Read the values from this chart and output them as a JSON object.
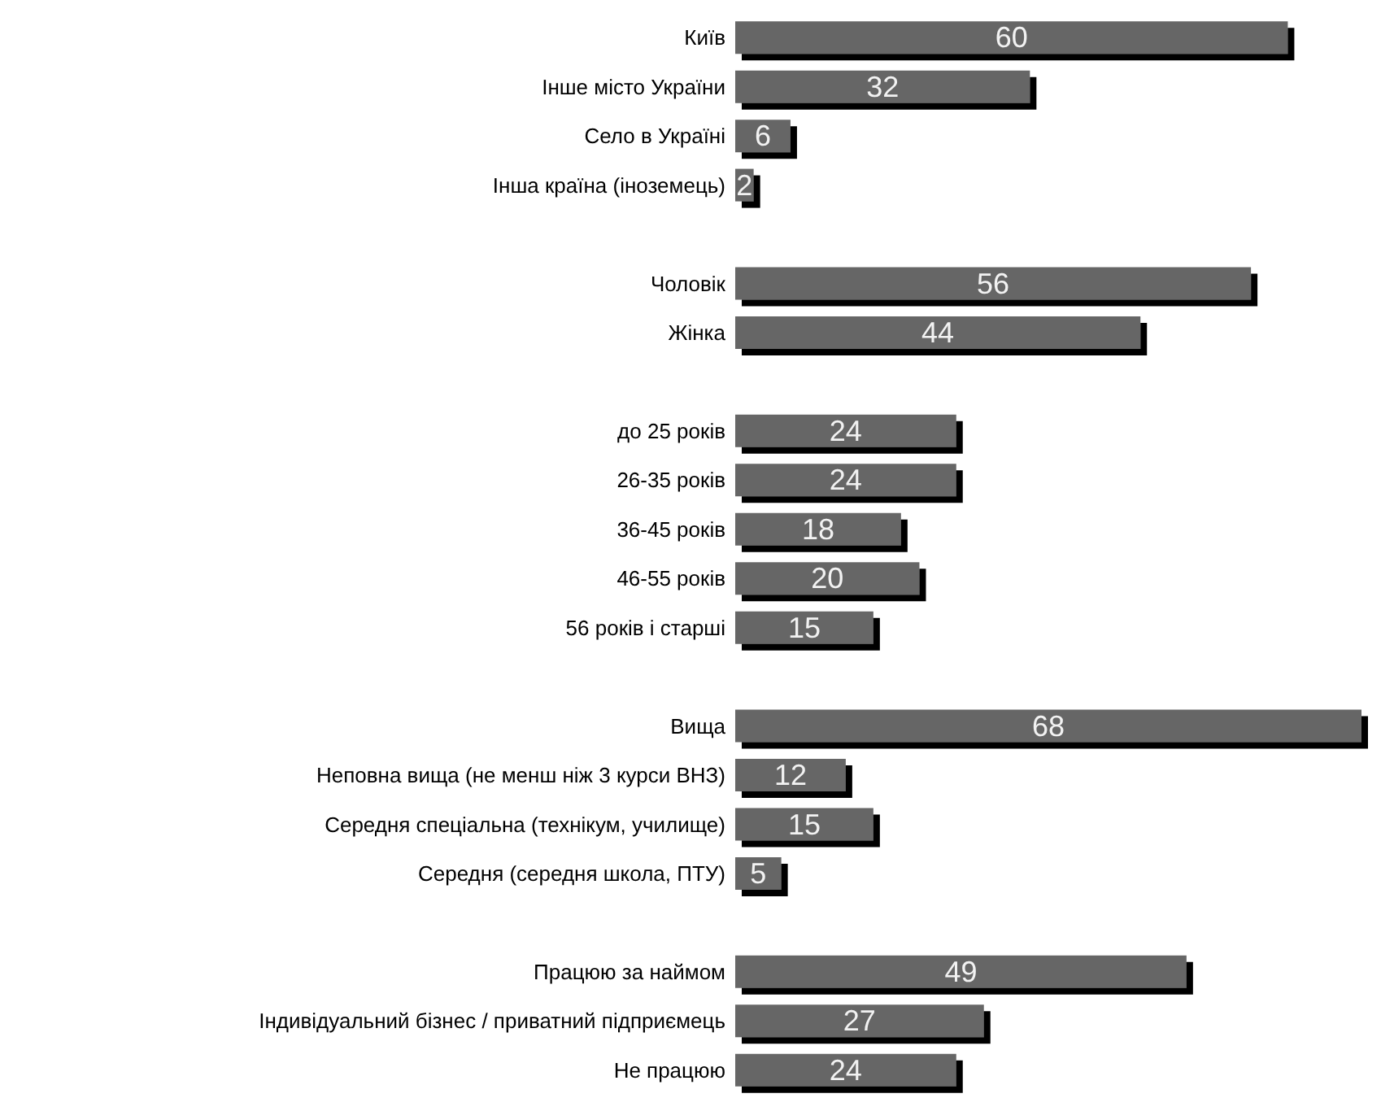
{
  "chart_data": {
    "type": "bar",
    "orientation": "horizontal",
    "data_labels": true,
    "categories": [
      "Київ",
      "Інше місто України",
      "Село в Україні",
      "Інша країна (іноземець)",
      null,
      "Чоловік",
      "Жінка",
      null,
      "до 25 років",
      "26-35 років",
      "36-45 років",
      "46-55 років",
      "56 років і старші",
      null,
      "Вища",
      "Неповна вища (не менш ніж 3 курси ВНЗ)",
      "Середня спеціальна (технікум, училище)",
      "Середня (середня школа, ПТУ)",
      null,
      "Працюю за наймом",
      "Індивідуальний бізнес / приватний підприємець",
      "Не працюю"
    ],
    "values": [
      60,
      32,
      6,
      2,
      null,
      56,
      44,
      null,
      24,
      24,
      18,
      20,
      15,
      null,
      68,
      12,
      15,
      5,
      null,
      49,
      27,
      24
    ],
    "color": "#666666"
  }
}
